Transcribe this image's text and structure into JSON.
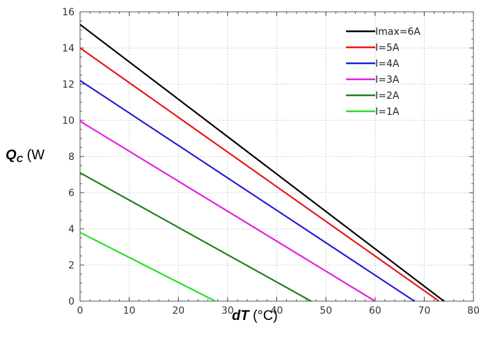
{
  "chart_data": {
    "type": "line",
    "title": "",
    "xlabel": {
      "symbol": "dT",
      "unit": " (°C)"
    },
    "ylabel": {
      "symbol": "Q",
      "subscript": "C",
      "unit": " (W"
    },
    "xlim": [
      0,
      80
    ],
    "ylim": [
      0,
      16
    ],
    "x_ticks": [
      0,
      10,
      20,
      30,
      40,
      50,
      60,
      70,
      80
    ],
    "y_ticks": [
      0,
      2,
      4,
      6,
      8,
      10,
      12,
      14,
      16
    ],
    "x_minor_step": 2,
    "y_minor_step": 0.5,
    "grid": true,
    "legend_position": "top-right",
    "series": [
      {
        "name": "Imax=6A",
        "color": "#000000",
        "x": [
          0,
          74
        ],
        "y": [
          15.3,
          0
        ]
      },
      {
        "name": "I=5A",
        "color": "#e8141b",
        "x": [
          0,
          73
        ],
        "y": [
          14.0,
          0
        ]
      },
      {
        "name": "I=4A",
        "color": "#1f1fd8",
        "x": [
          0,
          68
        ],
        "y": [
          12.2,
          0
        ]
      },
      {
        "name": "I=3A",
        "color": "#e020e0",
        "x": [
          0,
          60
        ],
        "y": [
          9.95,
          0
        ]
      },
      {
        "name": "I=2A",
        "color": "#1e7f1e",
        "x": [
          0,
          47
        ],
        "y": [
          7.1,
          0
        ]
      },
      {
        "name": "I=1A",
        "color": "#22e022",
        "x": [
          0,
          27.5
        ],
        "y": [
          3.8,
          0
        ]
      }
    ]
  }
}
